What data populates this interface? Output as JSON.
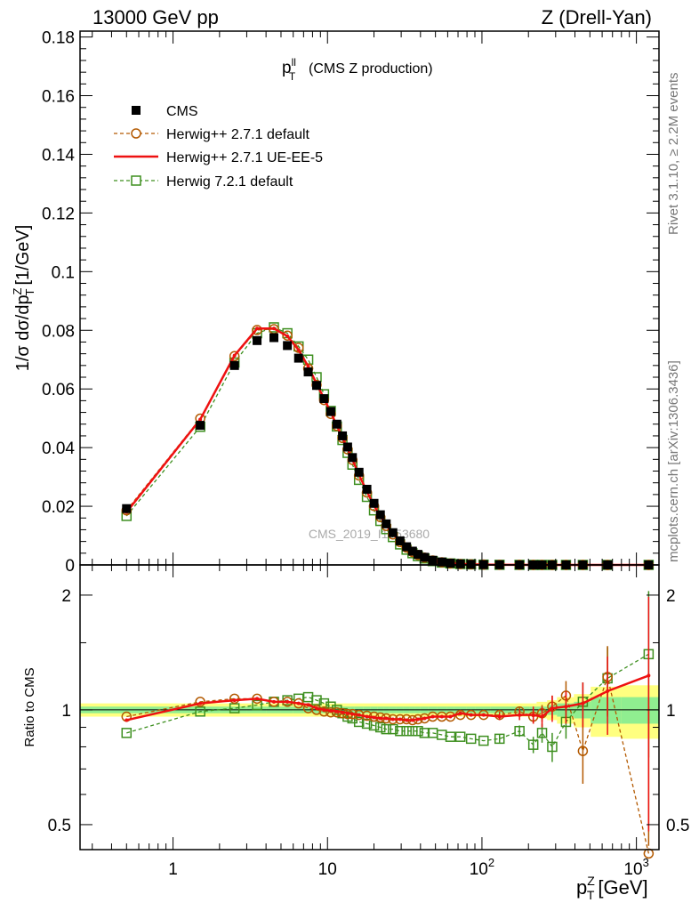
{
  "header": {
    "left": "13000 GeV pp",
    "right": "Z (Drell-Yan)"
  },
  "side_text": {
    "rivet": "Rivet 3.1.10, ≥ 2.2M events",
    "site": "mcplots.cern.ch [arXiv:1306.3436]"
  },
  "watermark": "CMS_2019_I1753680",
  "colors": {
    "cms": "#000000",
    "hw271": "#b35900",
    "ueee5": "#ee1111",
    "hw721": "#3d8f1f",
    "band_inner": "#90ee90",
    "band_outer": "#ffff80"
  },
  "chart_data": [
    {
      "type": "line",
      "title": "(CMS Z production)",
      "title_symbol": "p",
      "title_sup": "ll",
      "title_sub": "T",
      "ylabel": "1/σ dσ/dp",
      "ylabel_sup": "Z",
      "ylabel_sub": "T",
      "ylabel_unit": "[1/GeV]",
      "xscale": "log",
      "xlim": [
        0.25,
        1400
      ],
      "ylim": [
        0,
        0.182
      ],
      "ytick_labels": [
        "0",
        "0.02",
        "0.04",
        "0.06",
        "0.08",
        "0.1",
        "0.12",
        "0.14",
        "0.16",
        "0.18"
      ],
      "legend_position": "top-left",
      "x": [
        0.5,
        1.5,
        2.5,
        3.5,
        4.5,
        5.5,
        6.5,
        7.5,
        8.5,
        9.5,
        10.5,
        11.5,
        12.5,
        13.5,
        14.5,
        16,
        18,
        20,
        22,
        24,
        26.5,
        29.5,
        32.5,
        35.5,
        38.5,
        42.5,
        48,
        55,
        62.5,
        72.5,
        85,
        102.5,
        130,
        175,
        215,
        245,
        285,
        350,
        450,
        650,
        1200
      ],
      "series": [
        {
          "name": "CMS",
          "style": "markers-square-filled",
          "values": [
            0.0192,
            0.0476,
            0.068,
            0.0765,
            0.0775,
            0.0748,
            0.0705,
            0.0658,
            0.0612,
            0.0567,
            0.0523,
            0.048,
            0.044,
            0.0402,
            0.0366,
            0.0316,
            0.0258,
            0.021,
            0.0171,
            0.014,
            0.011,
            0.0082,
            0.0062,
            0.0047,
            0.0036,
            0.0026,
            0.0016,
            0.001,
            0.0006,
            0.00035,
            0.0002,
            0.0001,
            5e-05,
            2e-05,
            1.2e-05,
            9e-06,
            6e-06,
            4e-06,
            2e-06,
            1e-06,
            2e-07
          ]
        },
        {
          "name": "Herwig++ 2.7.1 default",
          "style": "dashed-circle",
          "values": [
            0.0186,
            0.0499,
            0.0712,
            0.0801,
            0.0804,
            0.0782,
            0.074,
            0.067,
            0.0614,
            0.0562,
            0.0515,
            0.0474,
            0.0433,
            0.0394,
            0.0358,
            0.0305,
            0.0247,
            0.0201,
            0.0163,
            0.0133,
            0.0104,
            0.0078,
            0.0059,
            0.0044,
            0.0034,
            0.0025,
            0.0015,
            0.0009,
            0.0005,
            0.0003,
            0.0002,
            0.0001,
            5e-05,
            2e-05,
            1.1e-05,
            9e-06,
            6e-06,
            4e-06,
            1.5e-06,
            1e-06,
            1e-07
          ]
        },
        {
          "name": "Herwig++ 2.7.1 UE-EE-5",
          "style": "solid",
          "values": [
            0.018,
            0.0496,
            0.0714,
            0.0806,
            0.0806,
            0.078,
            0.0733,
            0.0677,
            0.0618,
            0.0567,
            0.052,
            0.0475,
            0.0434,
            0.0395,
            0.0359,
            0.0307,
            0.025,
            0.0203,
            0.0165,
            0.0135,
            0.0106,
            0.008,
            0.006,
            0.0045,
            0.0034,
            0.0025,
            0.0015,
            0.0009,
            0.0005,
            0.0003,
            0.0002,
            0.0001,
            5e-05,
            2e-05,
            1.2e-05,
            9e-06,
            6e-06,
            4e-06,
            2e-06,
            1e-06,
            2e-07
          ]
        },
        {
          "name": "Herwig 7.2.1 default",
          "style": "dashed-square-open",
          "values": [
            0.0167,
            0.0471,
            0.069,
            0.079,
            0.081,
            0.079,
            0.0745,
            0.07,
            0.064,
            0.0582,
            0.0525,
            0.0472,
            0.0426,
            0.0382,
            0.0342,
            0.029,
            0.0232,
            0.0186,
            0.015,
            0.0122,
            0.0095,
            0.007,
            0.0052,
            0.004,
            0.003,
            0.0022,
            0.0013,
            0.0008,
            0.0005,
            0.0003,
            0.0002,
            0.0001,
            4e-05,
            2e-05,
            1e-05,
            8e-06,
            5e-06,
            4e-06,
            2e-06,
            1e-06,
            3e-07
          ]
        }
      ]
    },
    {
      "type": "line",
      "ylabel": "Ratio to CMS",
      "xlabel": "p",
      "xlabel_sup": "Z",
      "xlabel_sub": "T",
      "xlabel_unit": "[GeV]",
      "xscale": "log",
      "yscale": "log",
      "xlim": [
        0.25,
        1400
      ],
      "ylim": [
        0.43,
        2.4
      ],
      "ytick_labels": [
        "0.5",
        "1",
        "2"
      ],
      "xtick_labels": [
        "1",
        "10",
        "10",
        "10"
      ],
      "xtick_sups": [
        "",
        "",
        "2",
        "3"
      ],
      "band_edges": [
        0.25,
        1,
        2,
        3,
        4,
        5,
        6,
        7,
        8,
        9,
        10,
        11,
        12,
        13,
        14,
        15,
        17,
        19,
        21,
        23,
        25,
        28,
        31,
        34,
        37,
        40,
        45,
        51,
        59,
        66,
        79,
        91,
        114,
        146,
        204,
        226,
        264,
        306,
        394,
        506,
        794,
        1400
      ],
      "band_inner": [
        0.02,
        0.02,
        0.02,
        0.02,
        0.02,
        0.02,
        0.02,
        0.02,
        0.02,
        0.02,
        0.02,
        0.02,
        0.02,
        0.02,
        0.02,
        0.02,
        0.02,
        0.02,
        0.02,
        0.02,
        0.02,
        0.02,
        0.02,
        0.02,
        0.02,
        0.02,
        0.02,
        0.02,
        0.02,
        0.02,
        0.02,
        0.02,
        0.02,
        0.02,
        0.02,
        0.02,
        0.03,
        0.04,
        0.05,
        0.08,
        0.08
      ],
      "band_outer": [
        0.04,
        0.04,
        0.04,
        0.04,
        0.04,
        0.04,
        0.04,
        0.04,
        0.04,
        0.04,
        0.04,
        0.04,
        0.04,
        0.04,
        0.04,
        0.04,
        0.04,
        0.04,
        0.04,
        0.04,
        0.04,
        0.04,
        0.04,
        0.04,
        0.04,
        0.04,
        0.04,
        0.04,
        0.04,
        0.04,
        0.04,
        0.04,
        0.04,
        0.04,
        0.04,
        0.05,
        0.06,
        0.08,
        0.1,
        0.15,
        0.16
      ],
      "x": [
        0.5,
        1.5,
        2.5,
        3.5,
        4.5,
        5.5,
        6.5,
        7.5,
        8.5,
        9.5,
        10.5,
        11.5,
        12.5,
        13.5,
        14.5,
        16,
        18,
        20,
        22,
        24,
        26.5,
        29.5,
        32.5,
        35.5,
        38.5,
        42.5,
        48,
        55,
        62.5,
        72.5,
        85,
        102.5,
        130,
        175,
        215,
        245,
        285,
        350,
        450,
        650,
        1200
      ],
      "series": [
        {
          "name": "Herwig++ 2.7.1 default",
          "style": "dashed-circle",
          "values": [
            0.96,
            1.05,
            1.07,
            1.07,
            1.05,
            1.05,
            1.04,
            1.01,
            1.0,
            0.99,
            0.985,
            0.985,
            0.98,
            0.975,
            0.975,
            0.97,
            0.965,
            0.96,
            0.955,
            0.95,
            0.945,
            0.945,
            0.945,
            0.94,
            0.945,
            0.95,
            0.96,
            0.96,
            0.96,
            0.97,
            0.97,
            0.97,
            0.97,
            0.99,
            0.96,
            0.98,
            1.02,
            1.09,
            0.78,
            1.22,
            0.42
          ],
          "errors": [
            0.01,
            0.01,
            0.01,
            0.01,
            0.01,
            0.01,
            0.01,
            0.01,
            0.01,
            0.01,
            0.01,
            0.01,
            0.01,
            0.01,
            0.01,
            0.01,
            0.01,
            0.01,
            0.01,
            0.01,
            0.01,
            0.01,
            0.01,
            0.01,
            0.01,
            0.01,
            0.01,
            0.01,
            0.01,
            0.01,
            0.01,
            0.01,
            0.02,
            0.03,
            0.04,
            0.05,
            0.07,
            0.1,
            0.14,
            0.25,
            0.6
          ]
        },
        {
          "name": "Herwig++ 2.7.1 UE-EE-5",
          "style": "solid",
          "values": [
            0.94,
            1.04,
            1.06,
            1.07,
            1.05,
            1.05,
            1.04,
            1.03,
            1.01,
            1.0,
            0.995,
            0.99,
            0.985,
            0.98,
            0.975,
            0.97,
            0.96,
            0.955,
            0.95,
            0.95,
            0.945,
            0.945,
            0.94,
            0.94,
            0.945,
            0.95,
            0.96,
            0.96,
            0.96,
            0.98,
            0.97,
            0.97,
            0.96,
            0.97,
            0.97,
            0.96,
            1.01,
            1.02,
            1.04,
            1.12,
            1.23
          ],
          "errors": [
            0.01,
            0.01,
            0.01,
            0.01,
            0.01,
            0.01,
            0.01,
            0.01,
            0.01,
            0.01,
            0.01,
            0.01,
            0.01,
            0.01,
            0.01,
            0.01,
            0.01,
            0.01,
            0.01,
            0.01,
            0.01,
            0.01,
            0.01,
            0.01,
            0.01,
            0.01,
            0.01,
            0.01,
            0.01,
            0.01,
            0.01,
            0.01,
            0.02,
            0.03,
            0.05,
            0.06,
            0.08,
            0.1,
            0.14,
            0.26,
            0.75
          ]
        },
        {
          "name": "Herwig 7.2.1 default",
          "style": "dashed-square-open",
          "values": [
            0.87,
            0.99,
            1.01,
            1.03,
            1.05,
            1.06,
            1.07,
            1.08,
            1.06,
            1.04,
            1.02,
            1.0,
            0.98,
            0.96,
            0.95,
            0.93,
            0.92,
            0.91,
            0.9,
            0.89,
            0.89,
            0.88,
            0.88,
            0.88,
            0.88,
            0.87,
            0.87,
            0.86,
            0.85,
            0.85,
            0.84,
            0.83,
            0.84,
            0.88,
            0.81,
            0.87,
            0.8,
            0.93,
            1.05,
            1.21,
            1.4
          ],
          "errors": [
            0.01,
            0.01,
            0.01,
            0.01,
            0.01,
            0.01,
            0.01,
            0.01,
            0.01,
            0.01,
            0.01,
            0.01,
            0.01,
            0.01,
            0.01,
            0.01,
            0.01,
            0.01,
            0.01,
            0.01,
            0.01,
            0.01,
            0.01,
            0.01,
            0.01,
            0.01,
            0.01,
            0.01,
            0.01,
            0.01,
            0.01,
            0.01,
            0.02,
            0.03,
            0.04,
            0.05,
            0.07,
            0.09,
            0.13,
            0.25,
            0.65
          ]
        }
      ]
    }
  ]
}
